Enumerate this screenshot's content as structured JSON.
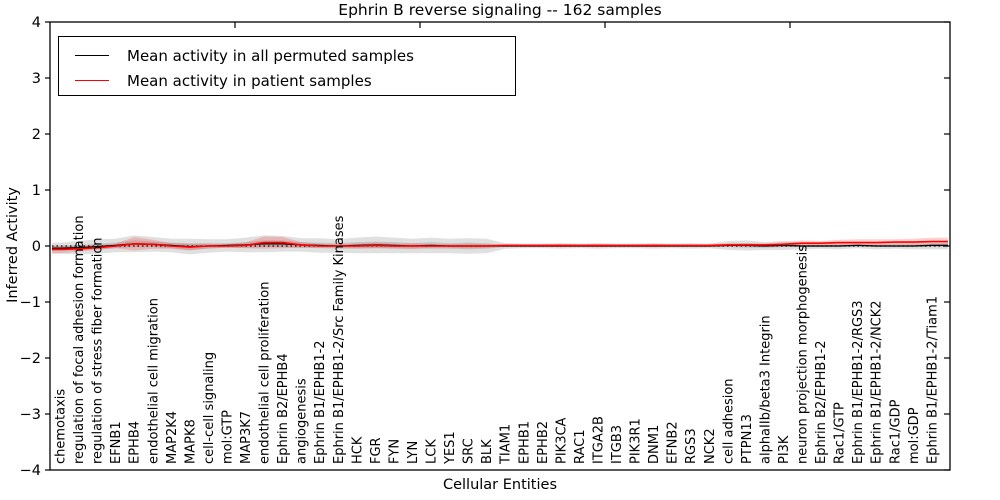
{
  "figure": {
    "title": "Ephrin B reverse signaling -- 162 samples",
    "xlabel": "Cellular Entities",
    "ylabel": "Inferred Activity"
  },
  "legend": {
    "entries": [
      {
        "label": "Mean activity in all permuted samples",
        "color": "#000000"
      },
      {
        "label": "Mean activity in patient samples",
        "color": "#ff0000"
      }
    ]
  },
  "chart_data": {
    "type": "line",
    "title": "Ephrin B reverse signaling -- 162 samples",
    "xlabel": "Cellular Entities",
    "ylabel": "Inferred Activity",
    "ylim": [
      -4,
      4
    ],
    "yticks": [
      -4,
      -3,
      -2,
      -1,
      0,
      1,
      2,
      3,
      4
    ],
    "yticklabels": [
      "−4",
      "−3",
      "−2",
      "−1",
      "0",
      "1",
      "2",
      "3",
      "4"
    ],
    "grid": false,
    "legend_position": "upper left",
    "zero_line": {
      "y": 0,
      "style": "dotted",
      "color": "#000000"
    },
    "categories": [
      "chemotaxis",
      "regulation of focal adhesion formation",
      "regulation of stress fiber formation",
      "EFNB1",
      "EPHB4",
      "endothelial cell migration",
      "MAP2K4",
      "MAPK8",
      "cell-cell signaling",
      "mol:GTP",
      "MAP3K7",
      "endothelial cell proliferation",
      "Ephrin B2/EPHB4",
      "angiogenesis",
      "Ephrin B1/EPHB1-2",
      "Ephrin B1/EPHB1-2/Src Family Kinases",
      "HCK",
      "FGR",
      "FYN",
      "LYN",
      "LCK",
      "YES1",
      "SRC",
      "BLK",
      "TIAM1",
      "EPHB1",
      "EPHB2",
      "PIK3CA",
      "RAC1",
      "ITGA2B",
      "ITGB3",
      "PIK3R1",
      "DNM1",
      "EFNB2",
      "RGS3",
      "NCK2",
      "cell adhesion",
      "PTPN13",
      "alphaIIb/beta3 Integrin",
      "PI3K",
      "neuron projection morphogenesis",
      "Ephrin B2/EPHB1-2",
      "Rac1/GTP",
      "Ephrin B1/EPHB1-2/RGS3",
      "Ephrin B1/EPHB1-2/NCK2",
      "Rac1/GDP",
      "mol:GDP",
      "Ephrin B1/EPHB1-2/Tiam1"
    ],
    "series": [
      {
        "name": "Mean activity in all permuted samples",
        "color": "#000000",
        "values": [
          -0.04,
          -0.03,
          -0.01,
          0.01,
          0.04,
          0.03,
          0.01,
          -0.01,
          0.0,
          0.01,
          0.02,
          0.04,
          0.04,
          0.02,
          0.01,
          0.0,
          0.01,
          0.02,
          0.01,
          0.0,
          0.01,
          0.0,
          0.0,
          0.0,
          0.0,
          0.0,
          0.0,
          0.0,
          0.0,
          0.0,
          0.0,
          0.0,
          0.0,
          0.0,
          0.0,
          0.0,
          0.01,
          0.01,
          0.0,
          0.01,
          0.0,
          0.0,
          0.0,
          0.01,
          0.0,
          0.0,
          0.0,
          0.01
        ]
      },
      {
        "name": "Mean activity in patient samples",
        "color": "#ff0000",
        "values": [
          -0.06,
          -0.05,
          -0.03,
          0.0,
          0.04,
          0.03,
          0.0,
          -0.02,
          0.0,
          0.0,
          0.01,
          0.06,
          0.06,
          0.02,
          0.0,
          0.0,
          0.0,
          0.01,
          0.0,
          0.0,
          0.0,
          0.0,
          0.0,
          0.0,
          0.01,
          0.01,
          0.01,
          0.01,
          0.01,
          0.01,
          0.01,
          0.01,
          0.01,
          0.01,
          0.01,
          0.01,
          0.02,
          0.02,
          0.02,
          0.03,
          0.05,
          0.05,
          0.06,
          0.06,
          0.06,
          0.07,
          0.07,
          0.08
        ]
      }
    ],
    "bands": [
      {
        "name": "permuted-spread-outer",
        "center_series": 0,
        "color": "#000000",
        "opacity": 0.12,
        "halfwidths": [
          0.1,
          0.12,
          0.13,
          0.12,
          0.15,
          0.13,
          0.12,
          0.14,
          0.12,
          0.11,
          0.13,
          0.15,
          0.14,
          0.12,
          0.13,
          0.12,
          0.14,
          0.15,
          0.14,
          0.13,
          0.14,
          0.13,
          0.14,
          0.13,
          0.05,
          0.04,
          0.04,
          0.05,
          0.04,
          0.05,
          0.04,
          0.04,
          0.05,
          0.04,
          0.05,
          0.04,
          0.08,
          0.09,
          0.07,
          0.08,
          0.06,
          0.05,
          0.06,
          0.05,
          0.06,
          0.05,
          0.06,
          0.07
        ]
      },
      {
        "name": "permuted-spread-inner",
        "center_series": 0,
        "color": "#000000",
        "opacity": 0.12,
        "halfwidths": [
          0.04,
          0.05,
          0.05,
          0.05,
          0.06,
          0.05,
          0.05,
          0.06,
          0.05,
          0.04,
          0.05,
          0.06,
          0.06,
          0.05,
          0.05,
          0.05,
          0.06,
          0.06,
          0.06,
          0.05,
          0.06,
          0.05,
          0.06,
          0.05,
          0.02,
          0.02,
          0.02,
          0.02,
          0.02,
          0.02,
          0.02,
          0.02,
          0.02,
          0.02,
          0.02,
          0.02,
          0.03,
          0.04,
          0.03,
          0.03,
          0.02,
          0.02,
          0.02,
          0.02,
          0.02,
          0.02,
          0.02,
          0.03
        ]
      },
      {
        "name": "patient-spread",
        "center_series": 1,
        "color": "#ff0000",
        "opacity": 0.18,
        "halfwidths": [
          0.07,
          0.05,
          0.04,
          0.04,
          0.12,
          0.08,
          0.05,
          0.06,
          0.04,
          0.03,
          0.05,
          0.11,
          0.1,
          0.05,
          0.03,
          0.03,
          0.04,
          0.05,
          0.04,
          0.05,
          0.03,
          0.03,
          0.04,
          0.03,
          0.02,
          0.02,
          0.02,
          0.03,
          0.02,
          0.03,
          0.02,
          0.02,
          0.03,
          0.02,
          0.02,
          0.02,
          0.03,
          0.03,
          0.03,
          0.04,
          0.05,
          0.04,
          0.05,
          0.06,
          0.06,
          0.05,
          0.06,
          0.07
        ]
      }
    ]
  }
}
